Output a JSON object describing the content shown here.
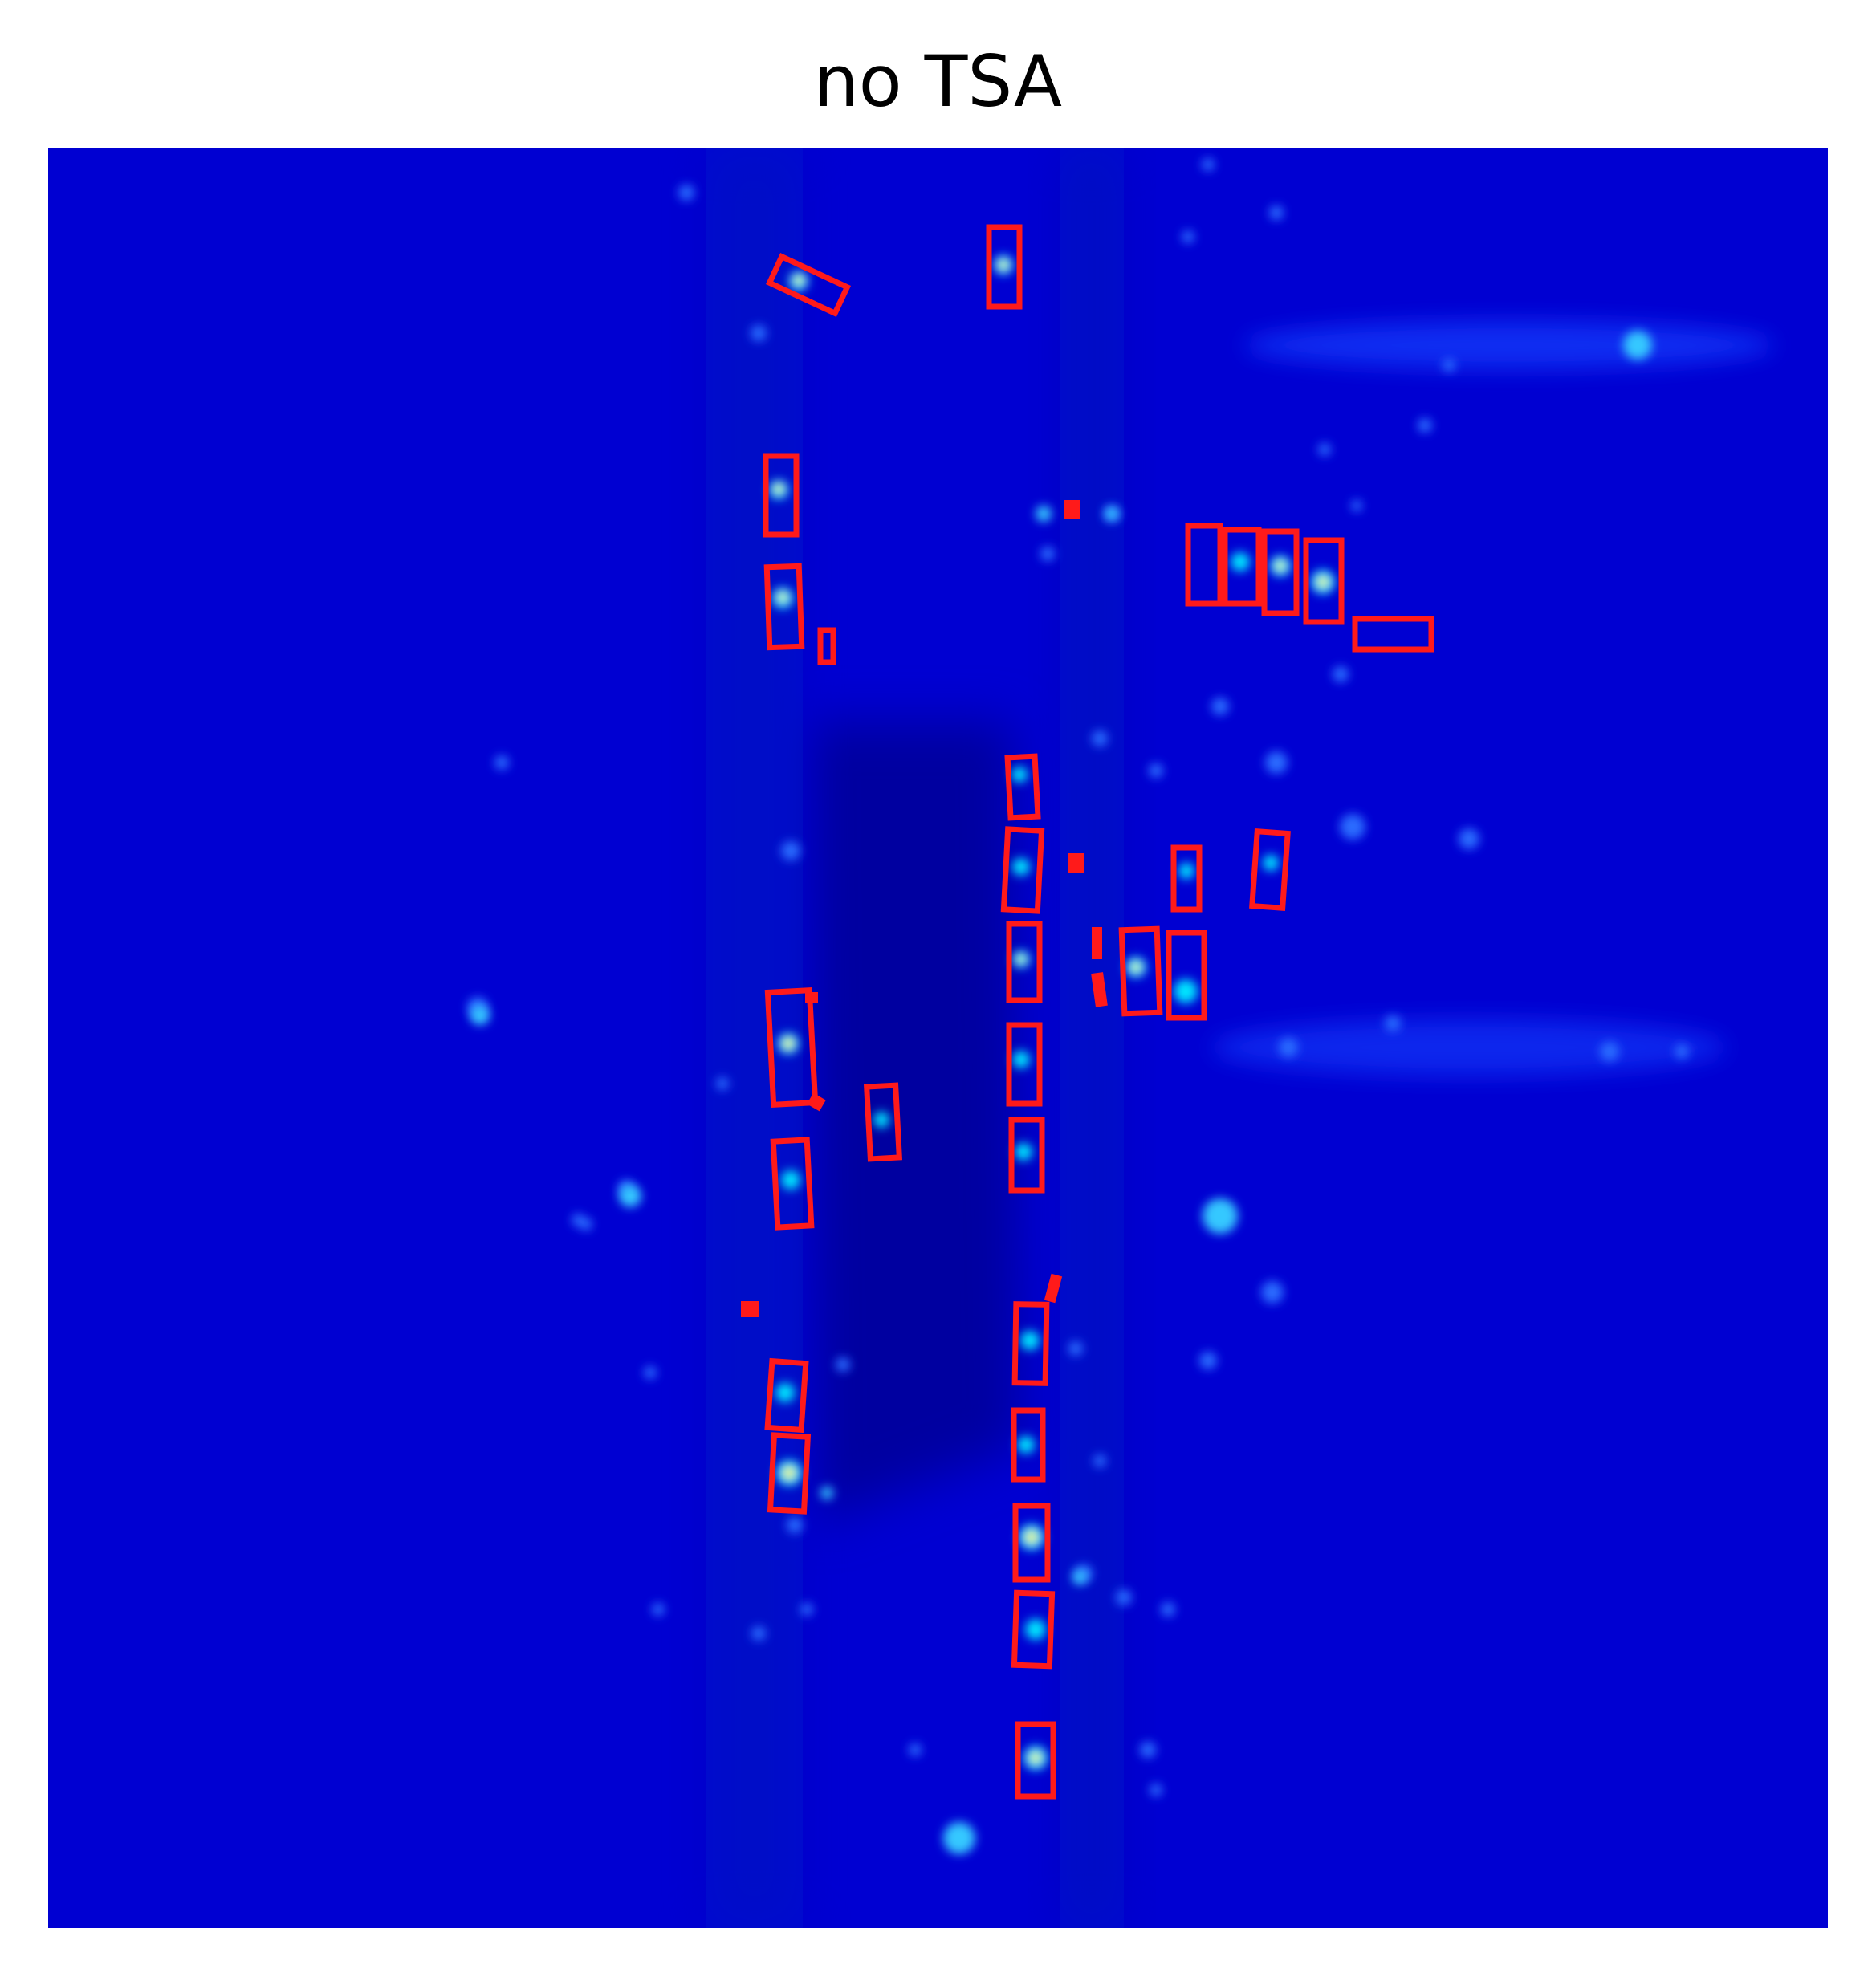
{
  "title": "no TSA",
  "colors": {
    "background": "#0000d2",
    "box": "#ff1a1a",
    "hot": "#ffff40",
    "warm": "#00ffcc"
  },
  "colormap": "jet"
}
